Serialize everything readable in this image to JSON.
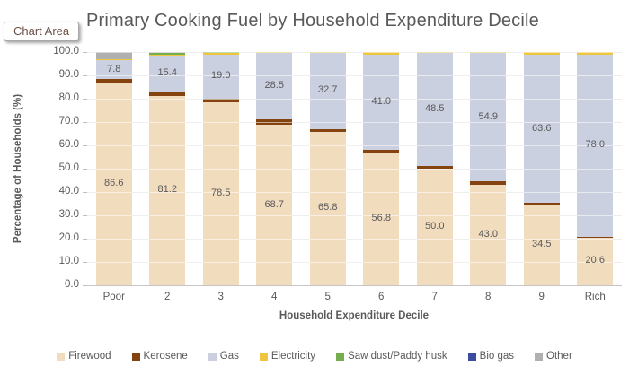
{
  "window": {
    "tooltip_label": "Chart Area"
  },
  "chart_data": {
    "type": "bar",
    "stacked": true,
    "title": "Primary Cooking Fuel by Household Expenditure Decile",
    "xlabel": "Household Expenditure Decile",
    "ylabel": "Percentage of Households (%)",
    "ylim": [
      0,
      100
    ],
    "y_tick_step": 10,
    "grid": true,
    "legend_position": "bottom",
    "categories": [
      "Poor",
      "2",
      "3",
      "4",
      "5",
      "6",
      "7",
      "8",
      "9",
      "Rich"
    ],
    "series": [
      {
        "name": "Firewood",
        "color": "#f2dcbe",
        "show_labels": true,
        "values": [
          86.6,
          81.2,
          78.5,
          68.7,
          65.8,
          56.8,
          50.0,
          43.0,
          34.5,
          20.6
        ]
      },
      {
        "name": "Kerosene",
        "color": "#84430f",
        "show_labels": false,
        "values": [
          2.0,
          1.8,
          1.5,
          2.3,
          1.2,
          1.2,
          1.2,
          1.6,
          0.8,
          0.3
        ]
      },
      {
        "name": "Gas",
        "color": "#cbd0e0",
        "show_labels": true,
        "values": [
          7.8,
          15.4,
          19.0,
          28.5,
          32.7,
          41.0,
          48.5,
          54.9,
          63.6,
          78.0
        ]
      },
      {
        "name": "Electricity",
        "color": "#edc53f",
        "show_labels": false,
        "values": [
          0.6,
          0.4,
          0.8,
          0.5,
          0.3,
          1.0,
          0.3,
          0.5,
          1.1,
          1.1
        ]
      },
      {
        "name": "Saw dust/Paddy husk",
        "color": "#76ae4f",
        "show_labels": false,
        "values": [
          0,
          1.0,
          0.2,
          0,
          0,
          0,
          0,
          0,
          0,
          0
        ]
      },
      {
        "name": "Bio gas",
        "color": "#3b4ca0",
        "show_labels": false,
        "values": [
          0,
          0,
          0,
          0,
          0,
          0,
          0,
          0,
          0,
          0
        ]
      },
      {
        "name": "Other",
        "color": "#b0b0b0",
        "show_labels": false,
        "values": [
          3.0,
          0.2,
          0,
          0,
          0,
          0,
          0,
          0,
          0,
          0
        ]
      }
    ]
  },
  "colors": {
    "text": "#595959",
    "gridline": "#dcdcdc",
    "axis_line": "#c6c6c6"
  }
}
